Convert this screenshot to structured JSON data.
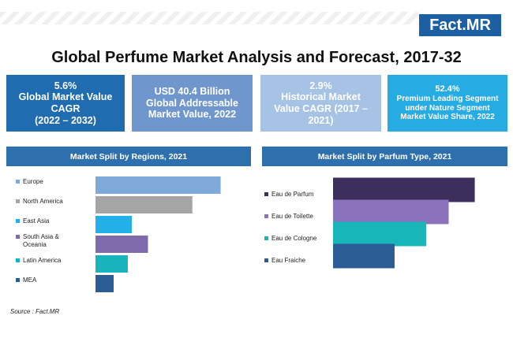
{
  "logo": {
    "text": "Fact",
    "dot": ".",
    "suffix": "MR"
  },
  "title": "Global Perfume Market Analysis and Forecast, 2017-32",
  "kpis": [
    {
      "value": "5.6%",
      "lines": [
        "Global Market Value",
        "CAGR",
        "(2022 – 2032)"
      ]
    },
    {
      "value": "USD 40.4 Billion",
      "lines": [
        "Global Addressable",
        "Market Value, 2022"
      ]
    },
    {
      "value": "2.9%",
      "lines": [
        "Historical Market",
        "Value CAGR (2017 –",
        "2021)"
      ]
    },
    {
      "value": "52.4%",
      "lines": [
        "Premium Leading Segment",
        "under Nature Segment",
        "Market Value Share, 2022"
      ]
    }
  ],
  "panels": {
    "regions_title": "Market Split by Regions, 2021",
    "parfum_title": "Market Split by Parfum Type, 2021"
  },
  "chart_data": [
    {
      "type": "bar",
      "orientation": "horizontal",
      "title": "Market Split by Regions, 2021",
      "categories": [
        "Europe",
        "North America",
        "East Asia",
        "South Asia & Oceania",
        "Latin America",
        "MEA"
      ],
      "category_lines": [
        [
          "Europe"
        ],
        [
          "North America"
        ],
        [
          "East Asia"
        ],
        [
          "South Asia &",
          "Oceania"
        ],
        [
          "Latin America"
        ],
        [
          "MEA"
        ]
      ],
      "values": [
        31,
        24,
        9,
        13,
        8,
        4.5
      ],
      "colors": [
        "#7ea9d8",
        "#a5a5a5",
        "#23b0e8",
        "#7e6aac",
        "#19b3bd",
        "#2b5d94"
      ],
      "xlim": [
        0,
        35
      ],
      "grid": false,
      "legend": "left"
    },
    {
      "type": "bar",
      "orientation": "horizontal",
      "title": "Market Split by Parfum Type, 2021",
      "categories": [
        "Eau de Parfum",
        "Eau de Toilette",
        "Eau de Cologne",
        "Eau Fraiche"
      ],
      "category_lines": [
        [
          "Eau de Parfum"
        ],
        [
          "Eau de Toilette"
        ],
        [
          "Eau de Cologne"
        ],
        [
          "Eau Fraiche"
        ]
      ],
      "values": [
        38,
        31,
        25,
        16.5
      ],
      "colors": [
        "#3e2e5e",
        "#8a72bd",
        "#18b5b9",
        "#2b5d94"
      ],
      "xlim": [
        0,
        40
      ],
      "grid": false,
      "legend": "left"
    }
  ],
  "source": "Source : Fact.MR"
}
